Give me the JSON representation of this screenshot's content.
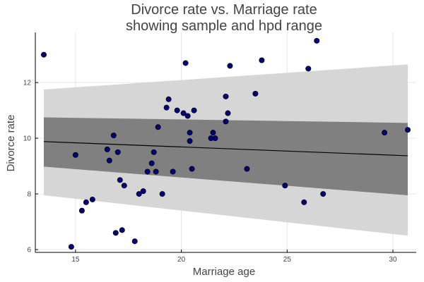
{
  "chart_data": {
    "type": "scatter",
    "title": [
      "Divorce rate vs. Marriage rate",
      "showing sample and hpd range"
    ],
    "xlabel": "Marriage age",
    "ylabel": "Divorce rate",
    "xlim": [
      13.1,
      31.1
    ],
    "ylim": [
      5.9,
      13.8
    ],
    "xticks": [
      15,
      20,
      25,
      30
    ],
    "yticks": [
      6,
      8,
      10,
      12
    ],
    "grid": true,
    "legend": "none",
    "colors": {
      "point_fill": "#000080",
      "point_edge": "#000000",
      "mean_line": "#000000",
      "inner_band": "#808080",
      "outer_band": "#d6d6d6"
    },
    "regression": {
      "x": [
        13.5,
        30.7
      ],
      "mean": [
        9.88,
        9.37
      ],
      "inner_lower": [
        8.98,
        7.95
      ],
      "inner_upper": [
        10.75,
        10.55
      ],
      "outer_lower": [
        7.95,
        6.5
      ],
      "outer_upper": [
        11.75,
        12.65
      ]
    },
    "points": [
      {
        "x": 13.5,
        "y": 13.0
      },
      {
        "x": 14.8,
        "y": 6.1
      },
      {
        "x": 15.0,
        "y": 9.4
      },
      {
        "x": 15.3,
        "y": 7.4
      },
      {
        "x": 15.5,
        "y": 7.7
      },
      {
        "x": 15.8,
        "y": 7.8
      },
      {
        "x": 16.5,
        "y": 9.6
      },
      {
        "x": 16.6,
        "y": 9.2
      },
      {
        "x": 16.8,
        "y": 10.1
      },
      {
        "x": 16.9,
        "y": 6.6
      },
      {
        "x": 17.0,
        "y": 9.5
      },
      {
        "x": 17.1,
        "y": 8.5
      },
      {
        "x": 17.2,
        "y": 6.7
      },
      {
        "x": 17.3,
        "y": 8.3
      },
      {
        "x": 17.8,
        "y": 6.3
      },
      {
        "x": 18.0,
        "y": 8.0
      },
      {
        "x": 18.2,
        "y": 8.1
      },
      {
        "x": 18.4,
        "y": 8.8
      },
      {
        "x": 18.6,
        "y": 9.1
      },
      {
        "x": 18.7,
        "y": 9.5
      },
      {
        "x": 18.8,
        "y": 8.8
      },
      {
        "x": 18.9,
        "y": 10.4
      },
      {
        "x": 19.1,
        "y": 8.0
      },
      {
        "x": 19.3,
        "y": 11.1
      },
      {
        "x": 19.4,
        "y": 11.4
      },
      {
        "x": 19.6,
        "y": 8.8
      },
      {
        "x": 19.8,
        "y": 11.0
      },
      {
        "x": 20.1,
        "y": 10.9
      },
      {
        "x": 20.2,
        "y": 12.7
      },
      {
        "x": 20.3,
        "y": 10.8
      },
      {
        "x": 20.4,
        "y": 9.9
      },
      {
        "x": 20.4,
        "y": 10.2
      },
      {
        "x": 20.5,
        "y": 8.9
      },
      {
        "x": 20.6,
        "y": 11.0
      },
      {
        "x": 21.4,
        "y": 10.0
      },
      {
        "x": 21.5,
        "y": 10.2
      },
      {
        "x": 21.6,
        "y": 10.0
      },
      {
        "x": 22.1,
        "y": 11.5
      },
      {
        "x": 22.1,
        "y": 10.6
      },
      {
        "x": 22.2,
        "y": 10.9
      },
      {
        "x": 22.3,
        "y": 12.6
      },
      {
        "x": 23.1,
        "y": 8.9
      },
      {
        "x": 23.5,
        "y": 11.6
      },
      {
        "x": 23.8,
        "y": 12.8
      },
      {
        "x": 24.9,
        "y": 8.3
      },
      {
        "x": 25.8,
        "y": 7.7
      },
      {
        "x": 26.0,
        "y": 12.5
      },
      {
        "x": 26.4,
        "y": 13.5
      },
      {
        "x": 26.7,
        "y": 8.0
      },
      {
        "x": 29.6,
        "y": 10.2
      },
      {
        "x": 30.7,
        "y": 10.3
      }
    ]
  }
}
